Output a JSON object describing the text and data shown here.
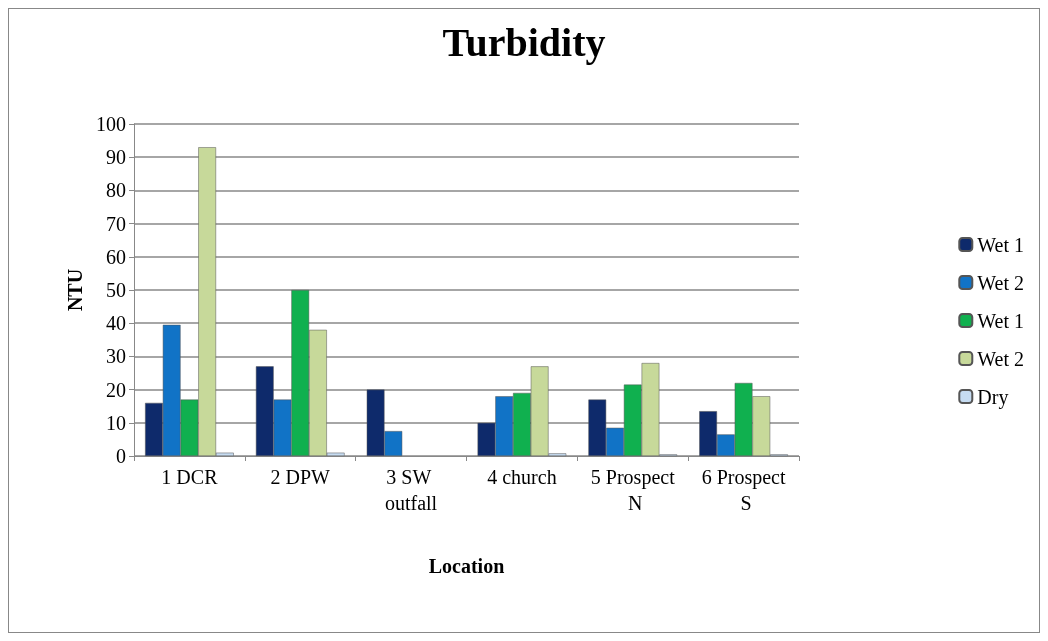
{
  "chart_data": {
    "type": "bar",
    "title": "Turbidity",
    "xlabel": "Location",
    "ylabel": "NTU",
    "categories": [
      "1 DCR",
      "2 DPW",
      "3 SW outfall",
      "4 church",
      "5 Prospect N",
      "6 Prospect S"
    ],
    "series": [
      {
        "name": "Wet 1",
        "color": "#0e2a6b",
        "values": [
          16,
          27,
          20,
          10,
          17,
          13.5
        ]
      },
      {
        "name": "Wet 2",
        "color": "#1173c6",
        "values": [
          39.5,
          17,
          7.5,
          18,
          8.5,
          6.5
        ]
      },
      {
        "name": "Wet 1",
        "color": "#10b04f",
        "values": [
          17,
          50,
          null,
          19,
          21.5,
          22
        ]
      },
      {
        "name": "Wet 2",
        "color": "#c7d99a",
        "values": [
          93,
          38,
          null,
          27,
          28,
          18
        ]
      },
      {
        "name": "Dry",
        "color": "#c6dcf2",
        "values": [
          1,
          1,
          null,
          0.8,
          0.5,
          0.5
        ]
      }
    ],
    "ylim": [
      0,
      100
    ],
    "yticks": [
      0,
      10,
      20,
      30,
      40,
      50,
      60,
      70,
      80,
      90,
      100
    ],
    "grid": "y",
    "legend": "right"
  }
}
